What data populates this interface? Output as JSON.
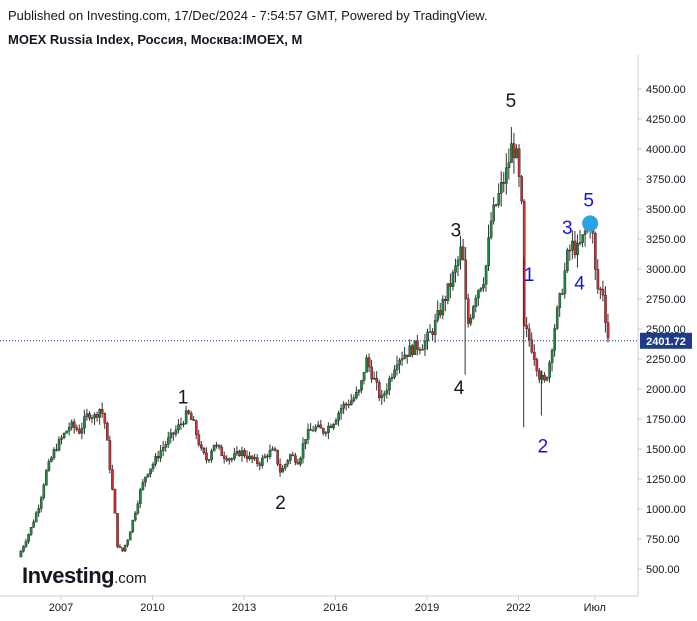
{
  "header": {
    "publish_line": "Published on Investing.com, 17/Dec/2024 - 7:54:57 GMT, Powered by TradingView.",
    "title_line": "MOEX Russia Index, Россия, Москва:IMOEX, M"
  },
  "logo": {
    "main": "Investing",
    "suffix": ".com"
  },
  "colors": {
    "up": "#1b8a3e",
    "down": "#cf2e2e",
    "wick": "#333333",
    "wave_black": "#131722",
    "wave_blue": "#1515d8",
    "price_badge": "#1e3a8a",
    "price_line": "#1e3a8a",
    "marker": "#2aa3e0"
  },
  "chart_data": {
    "type": "candlestick",
    "timeframe": "monthly",
    "ylim": [
      250,
      4750
    ],
    "y_ticks": [
      500,
      750,
      1000,
      1250,
      1500,
      1750,
      2000,
      2250,
      2500,
      2750,
      3000,
      3250,
      3500,
      3750,
      4000,
      4250,
      4500
    ],
    "y_tick_labels": [
      "500.00",
      "750.00",
      "1000.00",
      "1250.00",
      "1500.00",
      "1750.00",
      "2000.00",
      "2250.00",
      "2500.00",
      "2750.00",
      "3000.00",
      "3250.00",
      "3500.00",
      "3750.00",
      "4000.00",
      "4250.00",
      "4500.00"
    ],
    "x_ticks": [
      2007,
      2010,
      2013,
      2016,
      2019,
      2022,
      2024.5
    ],
    "x_tick_labels": [
      "2007",
      "2010",
      "2013",
      "2016",
      "2019",
      "2022",
      "Июл"
    ],
    "last_price": 2401.72,
    "last_price_label": "2401.72",
    "close_path": [
      [
        2005.6,
        600
      ],
      [
        2006.0,
        830
      ],
      [
        2006.3,
        1050
      ],
      [
        2006.5,
        1300
      ],
      [
        2006.8,
        1500
      ],
      [
        2007.0,
        1580
      ],
      [
        2007.3,
        1700
      ],
      [
        2007.6,
        1650
      ],
      [
        2007.9,
        1800
      ],
      [
        2008.1,
        1770
      ],
      [
        2008.3,
        1850
      ],
      [
        2008.45,
        1700
      ],
      [
        2008.6,
        1350
      ],
      [
        2008.75,
        1000
      ],
      [
        2008.85,
        700
      ],
      [
        2009.0,
        640
      ],
      [
        2009.2,
        760
      ],
      [
        2009.4,
        950
      ],
      [
        2009.6,
        1150
      ],
      [
        2009.8,
        1300
      ],
      [
        2010.0,
        1370
      ],
      [
        2010.3,
        1500
      ],
      [
        2010.6,
        1600
      ],
      [
        2010.9,
        1700
      ],
      [
        2011.15,
        1800
      ],
      [
        2011.35,
        1700
      ],
      [
        2011.6,
        1480
      ],
      [
        2011.8,
        1400
      ],
      [
        2012.0,
        1550
      ],
      [
        2012.3,
        1450
      ],
      [
        2012.6,
        1420
      ],
      [
        2012.9,
        1480
      ],
      [
        2013.2,
        1420
      ],
      [
        2013.5,
        1380
      ],
      [
        2013.8,
        1470
      ],
      [
        2014.0,
        1480
      ],
      [
        2014.2,
        1300
      ],
      [
        2014.5,
        1450
      ],
      [
        2014.8,
        1400
      ],
      [
        2015.0,
        1600
      ],
      [
        2015.3,
        1680
      ],
      [
        2015.6,
        1650
      ],
      [
        2015.9,
        1720
      ],
      [
        2016.2,
        1850
      ],
      [
        2016.5,
        1900
      ],
      [
        2016.8,
        1980
      ],
      [
        2017.0,
        2250
      ],
      [
        2017.3,
        2050
      ],
      [
        2017.5,
        1900
      ],
      [
        2017.8,
        2100
      ],
      [
        2018.0,
        2250
      ],
      [
        2018.3,
        2300
      ],
      [
        2018.6,
        2350
      ],
      [
        2018.9,
        2380
      ],
      [
        2019.2,
        2500
      ],
      [
        2019.5,
        2700
      ],
      [
        2019.8,
        2900
      ],
      [
        2020.0,
        3050
      ],
      [
        2020.15,
        3200
      ],
      [
        2020.25,
        2750
      ],
      [
        2020.35,
        2550
      ],
      [
        2020.6,
        2800
      ],
      [
        2020.9,
        2950
      ],
      [
        2021.1,
        3400
      ],
      [
        2021.4,
        3650
      ],
      [
        2021.6,
        3800
      ],
      [
        2021.8,
        4050
      ],
      [
        2021.95,
        3900
      ],
      [
        2022.1,
        3500
      ],
      [
        2022.17,
        2500
      ],
      [
        2022.3,
        2450
      ],
      [
        2022.5,
        2300
      ],
      [
        2022.7,
        2100
      ],
      [
        2022.85,
        2050
      ],
      [
        2023.0,
        2200
      ],
      [
        2023.2,
        2550
      ],
      [
        2023.4,
        2800
      ],
      [
        2023.6,
        3100
      ],
      [
        2023.75,
        3200
      ],
      [
        2023.95,
        3150
      ],
      [
        2024.1,
        3250
      ],
      [
        2024.25,
        3350
      ],
      [
        2024.4,
        3400
      ],
      [
        2024.5,
        3000
      ],
      [
        2024.62,
        2800
      ],
      [
        2024.75,
        2850
      ],
      [
        2024.85,
        2600
      ],
      [
        2024.95,
        2402
      ]
    ],
    "wave_labels": [
      {
        "text": "5",
        "x": 2021.75,
        "y": 4350,
        "color": "black"
      },
      {
        "text": "3",
        "x": 2019.95,
        "y": 3270,
        "color": "black"
      },
      {
        "text": "4",
        "x": 2020.05,
        "y": 1960,
        "color": "black"
      },
      {
        "text": "1",
        "x": 2011.0,
        "y": 1880,
        "color": "black"
      },
      {
        "text": "2",
        "x": 2014.2,
        "y": 1000,
        "color": "black"
      },
      {
        "text": "1",
        "x": 2022.35,
        "y": 2900,
        "color": "blue"
      },
      {
        "text": "2",
        "x": 2022.8,
        "y": 1470,
        "color": "blue"
      },
      {
        "text": "3",
        "x": 2023.6,
        "y": 3290,
        "color": "blue"
      },
      {
        "text": "4",
        "x": 2024.0,
        "y": 2830,
        "color": "blue"
      },
      {
        "text": "5",
        "x": 2024.3,
        "y": 3520,
        "color": "blue"
      }
    ],
    "marker": {
      "x": 2024.35,
      "y": 3380
    }
  }
}
